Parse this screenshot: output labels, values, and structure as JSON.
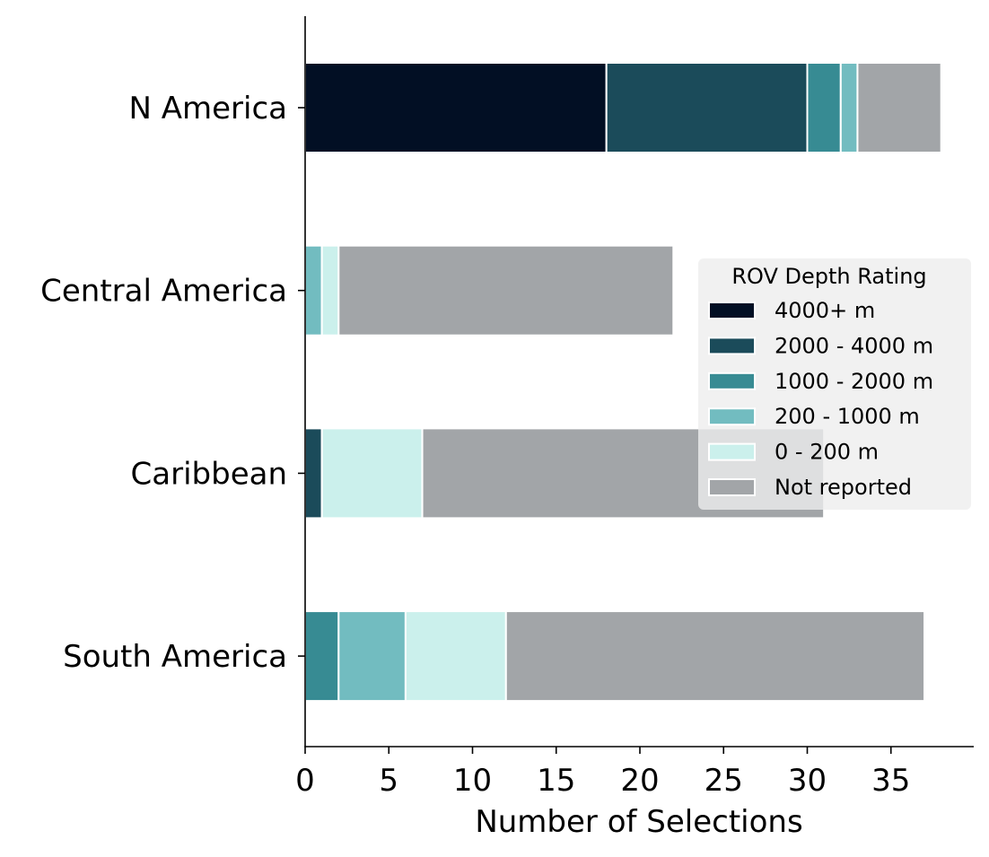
{
  "chart_data": {
    "type": "bar",
    "orientation": "horizontal",
    "stacked": true,
    "categories": [
      "N America",
      "Central America",
      "Caribbean",
      "South America"
    ],
    "series": [
      {
        "name": "4000+ m",
        "color": "#020f24",
        "values": [
          18,
          0,
          0,
          0
        ]
      },
      {
        "name": "2000 - 4000 m",
        "color": "#1b4b5a",
        "values": [
          12,
          0,
          1,
          0
        ]
      },
      {
        "name": "1000 - 2000 m",
        "color": "#378b93",
        "values": [
          2,
          0,
          0,
          2
        ]
      },
      {
        "name": "200 - 1000 m",
        "color": "#72bcc0",
        "values": [
          1,
          1,
          0,
          4
        ]
      },
      {
        "name": "0 - 200 m",
        "color": "#cbf0ec",
        "values": [
          0,
          1,
          6,
          6
        ]
      },
      {
        "name": "Not reported",
        "color": "#a2a5a8",
        "values": [
          5,
          20,
          24,
          25
        ]
      }
    ],
    "xlabel": "Number of Selections",
    "ylabel": "",
    "xlim": [
      0,
      40
    ],
    "xticks": [
      0,
      5,
      10,
      15,
      20,
      25,
      30,
      35
    ],
    "grid": false,
    "legend": {
      "title": "ROV Depth Rating",
      "placement": "center-right"
    }
  }
}
